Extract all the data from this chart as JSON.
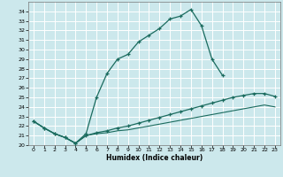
{
  "xlabel": "Humidex (Indice chaleur)",
  "bg_color": "#cce8ec",
  "grid_color": "#ffffff",
  "line_color": "#1a6b5e",
  "xlim": [
    -0.5,
    23.5
  ],
  "ylim": [
    20,
    35
  ],
  "yticks": [
    20,
    21,
    22,
    23,
    24,
    25,
    26,
    27,
    28,
    29,
    30,
    31,
    32,
    33,
    34
  ],
  "xticks": [
    0,
    1,
    2,
    3,
    4,
    5,
    6,
    7,
    8,
    9,
    10,
    11,
    12,
    13,
    14,
    15,
    16,
    17,
    18,
    19,
    20,
    21,
    22,
    23
  ],
  "line1_x": [
    0,
    1,
    2,
    3,
    4,
    5,
    6,
    7,
    8,
    9,
    10,
    11,
    12,
    13,
    14,
    15,
    16,
    17,
    18
  ],
  "line1_y": [
    22.5,
    21.8,
    21.2,
    20.8,
    20.2,
    21.2,
    25.0,
    27.5,
    29.0,
    29.5,
    30.8,
    31.5,
    32.2,
    33.2,
    33.5,
    34.2,
    32.5,
    29.0,
    27.3
  ],
  "line2_x": [
    0,
    1,
    2,
    3,
    4,
    5,
    6,
    7,
    8,
    9,
    10,
    11,
    12,
    13,
    14,
    15,
    16,
    17,
    18,
    19,
    20,
    21,
    22,
    23
  ],
  "line2_y": [
    22.5,
    21.8,
    21.2,
    20.8,
    20.2,
    21.0,
    21.3,
    21.5,
    21.8,
    22.0,
    22.3,
    22.6,
    22.9,
    23.2,
    23.5,
    23.8,
    24.1,
    24.4,
    24.7,
    25.0,
    25.2,
    25.4,
    25.4,
    25.1
  ],
  "line3_x": [
    0,
    1,
    2,
    3,
    4,
    5,
    6,
    7,
    8,
    9,
    10,
    11,
    12,
    13,
    14,
    15,
    16,
    17,
    18,
    19,
    20,
    21,
    22,
    23
  ],
  "line3_y": [
    22.5,
    21.8,
    21.2,
    20.8,
    20.2,
    21.0,
    21.2,
    21.3,
    21.5,
    21.6,
    21.8,
    22.0,
    22.2,
    22.4,
    22.6,
    22.8,
    23.0,
    23.2,
    23.4,
    23.6,
    23.8,
    24.0,
    24.2,
    24.0
  ]
}
